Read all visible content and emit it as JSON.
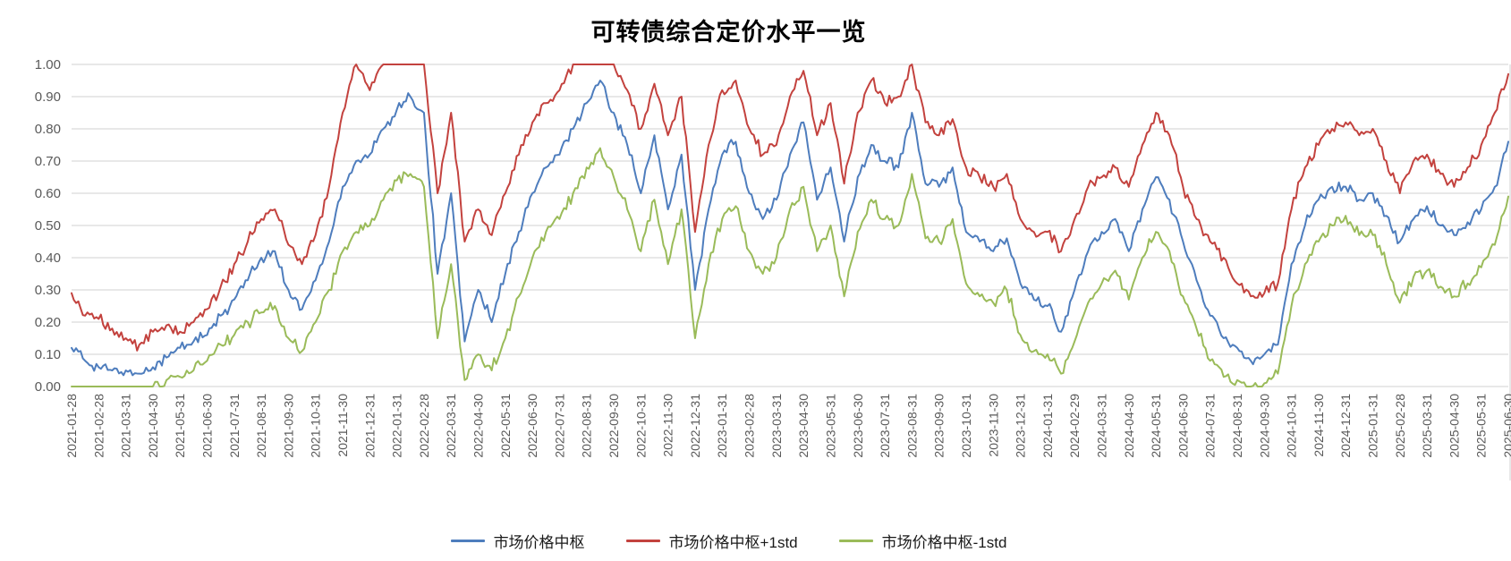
{
  "chart": {
    "title": "可转债综合定价水平一览"
  },
  "chart_data": {
    "type": "line",
    "title": "可转债综合定价水平一览",
    "xlabel": "",
    "ylabel": "",
    "ylim": [
      0,
      1
    ],
    "grid": "horizontal",
    "legend_position": "bottom",
    "sampling_note": "values sampled at each month-end tick and mid-month (two points per month), read off the plot",
    "y_axis": {
      "tick_labels": [
        "0.00",
        "0.10",
        "0.20",
        "0.30",
        "0.40",
        "0.50",
        "0.60",
        "0.70",
        "0.80",
        "0.90",
        "1.00"
      ]
    },
    "categories": [
      "2021-01-28",
      "2021-02-28",
      "2021-03-31",
      "2021-04-30",
      "2021-05-31",
      "2021-06-30",
      "2021-07-31",
      "2021-08-31",
      "2021-09-30",
      "2021-10-31",
      "2021-11-30",
      "2021-12-31",
      "2022-01-31",
      "2022-02-28",
      "2022-03-31",
      "2022-04-30",
      "2022-05-31",
      "2022-06-30",
      "2022-07-31",
      "2022-08-31",
      "2022-09-30",
      "2022-10-31",
      "2022-11-30",
      "2022-12-31",
      "2023-01-31",
      "2023-02-28",
      "2023-03-31",
      "2023-04-30",
      "2023-05-31",
      "2023-06-30",
      "2023-07-31",
      "2023-08-31",
      "2023-09-30",
      "2023-10-31",
      "2023-11-30",
      "2023-12-31",
      "2024-01-31",
      "2024-02-29",
      "2024-03-31",
      "2024-04-30",
      "2024-05-31",
      "2024-06-30",
      "2024-07-31",
      "2024-08-31",
      "2024-09-30",
      "2024-10-31",
      "2024-11-30",
      "2024-12-31",
      "2025-01-31",
      "2025-02-28",
      "2025-03-31",
      "2025-04-30",
      "2025-05-31",
      "2025-06-30"
    ],
    "series": [
      {
        "name": "市场价格中枢",
        "color": "#4E7DBD",
        "values": [
          0.12,
          0.08,
          0.06,
          0.05,
          0.05,
          0.04,
          0.06,
          0.09,
          0.12,
          0.14,
          0.16,
          0.22,
          0.27,
          0.33,
          0.4,
          0.42,
          0.3,
          0.24,
          0.33,
          0.45,
          0.62,
          0.7,
          0.72,
          0.8,
          0.86,
          0.9,
          0.85,
          0.35,
          0.6,
          0.14,
          0.3,
          0.2,
          0.35,
          0.48,
          0.6,
          0.68,
          0.72,
          0.8,
          0.88,
          0.95,
          0.85,
          0.75,
          0.6,
          0.78,
          0.55,
          0.72,
          0.3,
          0.55,
          0.72,
          0.76,
          0.6,
          0.52,
          0.58,
          0.72,
          0.82,
          0.58,
          0.68,
          0.45,
          0.65,
          0.75,
          0.7,
          0.68,
          0.85,
          0.63,
          0.62,
          0.68,
          0.48,
          0.45,
          0.42,
          0.46,
          0.32,
          0.27,
          0.25,
          0.17,
          0.3,
          0.42,
          0.48,
          0.52,
          0.42,
          0.55,
          0.65,
          0.58,
          0.45,
          0.33,
          0.22,
          0.15,
          0.12,
          0.08,
          0.1,
          0.13,
          0.38,
          0.5,
          0.58,
          0.62,
          0.62,
          0.58,
          0.6,
          0.53,
          0.45,
          0.52,
          0.56,
          0.5,
          0.47,
          0.51,
          0.55,
          0.62,
          0.76
        ]
      },
      {
        "name": "市场价格中枢+1std",
        "color": "#C3423E",
        "values": [
          0.29,
          0.22,
          0.21,
          0.18,
          0.15,
          0.13,
          0.17,
          0.19,
          0.17,
          0.2,
          0.24,
          0.31,
          0.38,
          0.45,
          0.52,
          0.55,
          0.44,
          0.38,
          0.47,
          0.62,
          0.85,
          1.0,
          0.92,
          1.0,
          1.0,
          1.0,
          1.0,
          0.6,
          0.85,
          0.45,
          0.55,
          0.47,
          0.6,
          0.72,
          0.82,
          0.88,
          0.92,
          1.0,
          1.0,
          1.0,
          1.0,
          0.92,
          0.8,
          0.94,
          0.78,
          0.9,
          0.48,
          0.75,
          0.92,
          0.95,
          0.8,
          0.72,
          0.75,
          0.9,
          0.98,
          0.78,
          0.88,
          0.63,
          0.85,
          0.95,
          0.88,
          0.9,
          1.0,
          0.82,
          0.78,
          0.83,
          0.68,
          0.65,
          0.62,
          0.66,
          0.52,
          0.48,
          0.48,
          0.42,
          0.52,
          0.62,
          0.65,
          0.68,
          0.62,
          0.75,
          0.85,
          0.78,
          0.62,
          0.52,
          0.45,
          0.4,
          0.32,
          0.28,
          0.29,
          0.32,
          0.55,
          0.68,
          0.75,
          0.8,
          0.82,
          0.78,
          0.8,
          0.7,
          0.6,
          0.7,
          0.72,
          0.66,
          0.62,
          0.68,
          0.75,
          0.85,
          0.97
        ]
      },
      {
        "name": "市场价格中枢-1std",
        "color": "#9ABB59",
        "values": [
          0.0,
          0.0,
          0.0,
          0.0,
          0.0,
          0.0,
          0.0,
          0.02,
          0.03,
          0.05,
          0.08,
          0.13,
          0.16,
          0.2,
          0.23,
          0.25,
          0.15,
          0.11,
          0.2,
          0.3,
          0.42,
          0.48,
          0.5,
          0.58,
          0.64,
          0.66,
          0.62,
          0.15,
          0.38,
          0.02,
          0.1,
          0.05,
          0.15,
          0.28,
          0.4,
          0.48,
          0.52,
          0.6,
          0.68,
          0.74,
          0.65,
          0.55,
          0.42,
          0.58,
          0.38,
          0.55,
          0.15,
          0.38,
          0.52,
          0.56,
          0.42,
          0.35,
          0.4,
          0.55,
          0.62,
          0.42,
          0.5,
          0.28,
          0.48,
          0.58,
          0.52,
          0.5,
          0.66,
          0.46,
          0.45,
          0.52,
          0.32,
          0.28,
          0.26,
          0.3,
          0.16,
          0.11,
          0.1,
          0.04,
          0.14,
          0.26,
          0.32,
          0.36,
          0.27,
          0.4,
          0.48,
          0.42,
          0.28,
          0.18,
          0.08,
          0.03,
          0.02,
          0.0,
          0.01,
          0.04,
          0.25,
          0.38,
          0.45,
          0.5,
          0.53,
          0.47,
          0.47,
          0.38,
          0.26,
          0.34,
          0.36,
          0.31,
          0.28,
          0.32,
          0.37,
          0.44,
          0.59
        ]
      }
    ]
  },
  "colors": {
    "background": "#FFFFFF",
    "grid": "#D9D9D9",
    "axis_label": "#595959",
    "title": "#000000"
  }
}
